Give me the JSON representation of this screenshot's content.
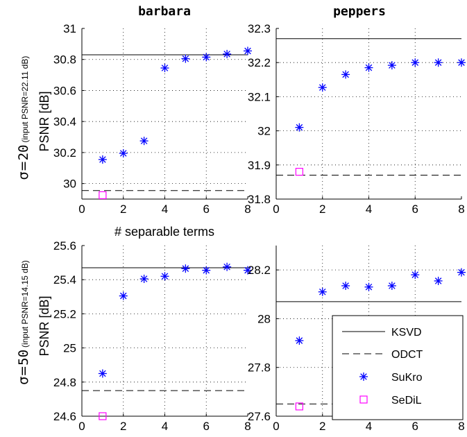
{
  "figure": {
    "row_labels": [
      {
        "sigma_symbol": "σ=",
        "sigma_value": "20",
        "input_note": "(input PSNR=22.11 dB)",
        "metric": "PSNR [dB]"
      },
      {
        "sigma_symbol": "σ=",
        "sigma_value": "50",
        "input_note": "(input PSNR=14.15 dB)",
        "metric": "PSNR [dB]"
      }
    ],
    "legend": [
      {
        "label": "KSVD",
        "style": "solid",
        "color": "#000000"
      },
      {
        "label": "ODCT",
        "style": "dashed",
        "color": "#000000"
      },
      {
        "label": "SuKro",
        "style": "asterisk",
        "color": "#0000ff"
      },
      {
        "label": "SeDiL",
        "style": "square",
        "color": "#ff00ff"
      }
    ],
    "colors": {
      "sukro": "#0000ff",
      "sedil": "#ff00ff",
      "lines": "#000000"
    }
  },
  "chart_data": [
    {
      "type": "scatter",
      "title": "barbara",
      "xlabel": "# separable terms",
      "ylabel": "PSNR [dB]",
      "xlim": [
        0,
        8
      ],
      "ylim": [
        29.9,
        31.0
      ],
      "xticks": [
        0,
        2,
        4,
        6,
        8
      ],
      "yticks": [
        30,
        30.2,
        30.4,
        30.6,
        30.8,
        31
      ],
      "ytick_labels": [
        "30",
        "30.2",
        "30.4",
        "30.6",
        "30.8",
        "31"
      ],
      "grid": true,
      "series": [
        {
          "name": "KSVD",
          "kind": "hline",
          "y": 30.83
        },
        {
          "name": "ODCT",
          "kind": "hline",
          "y": 29.955
        },
        {
          "name": "SuKro",
          "kind": "points",
          "x": [
            1,
            2,
            3,
            4,
            5,
            6,
            7,
            8
          ],
          "y": [
            30.155,
            30.195,
            30.275,
            30.745,
            30.805,
            30.815,
            30.835,
            30.855
          ]
        },
        {
          "name": "SeDiL",
          "kind": "points",
          "x": [
            1
          ],
          "y": [
            29.925
          ]
        }
      ]
    },
    {
      "type": "scatter",
      "title": "peppers",
      "xlabel": "",
      "ylabel": "",
      "xlim": [
        0,
        8
      ],
      "ylim": [
        31.8,
        32.3
      ],
      "xticks": [
        0,
        2,
        4,
        6,
        8
      ],
      "yticks": [
        31.8,
        31.9,
        32,
        32.1,
        32.2,
        32.3
      ],
      "ytick_labels": [
        "31.8",
        "31.9",
        "32",
        "32.1",
        "32.2",
        "32.3"
      ],
      "grid": true,
      "series": [
        {
          "name": "KSVD",
          "kind": "hline",
          "y": 32.27
        },
        {
          "name": "ODCT",
          "kind": "hline",
          "y": 31.87
        },
        {
          "name": "SuKro",
          "kind": "points",
          "x": [
            1,
            2,
            3,
            4,
            5,
            6,
            7,
            8
          ],
          "y": [
            32.01,
            32.127,
            32.165,
            32.185,
            32.192,
            32.2,
            32.2,
            32.2
          ]
        },
        {
          "name": "SeDiL",
          "kind": "points",
          "x": [
            1
          ],
          "y": [
            31.88
          ]
        }
      ]
    },
    {
      "type": "scatter",
      "title": "",
      "xlabel": "",
      "ylabel": "PSNR [dB]",
      "xlim": [
        0,
        8
      ],
      "ylim": [
        24.6,
        25.6
      ],
      "xticks": [
        0,
        2,
        4,
        6,
        8
      ],
      "yticks": [
        24.6,
        24.8,
        25,
        25.2,
        25.4,
        25.6
      ],
      "ytick_labels": [
        "24.6",
        "24.8",
        "25",
        "25.2",
        "25.4",
        "25.6"
      ],
      "grid": true,
      "series": [
        {
          "name": "KSVD",
          "kind": "hline",
          "y": 25.47
        },
        {
          "name": "ODCT",
          "kind": "hline",
          "y": 24.75
        },
        {
          "name": "SuKro",
          "kind": "points",
          "x": [
            1,
            2,
            3,
            4,
            5,
            6,
            7,
            8
          ],
          "y": [
            24.85,
            25.305,
            25.405,
            25.42,
            25.465,
            25.455,
            25.475,
            25.455
          ]
        },
        {
          "name": "SeDiL",
          "kind": "points",
          "x": [
            1
          ],
          "y": [
            24.6
          ]
        }
      ]
    },
    {
      "type": "scatter",
      "title": "",
      "xlabel": "",
      "ylabel": "",
      "xlim": [
        0,
        8
      ],
      "ylim": [
        27.6,
        28.3
      ],
      "xticks": [
        0,
        2,
        4,
        6,
        8
      ],
      "yticks": [
        27.6,
        27.8,
        28,
        28.2
      ],
      "ytick_labels": [
        "27.6",
        "27.8",
        "28",
        "28.2"
      ],
      "grid": true,
      "legend": "bottom-right",
      "series": [
        {
          "name": "KSVD",
          "kind": "hline",
          "y": 28.07
        },
        {
          "name": "ODCT",
          "kind": "hline",
          "y": 27.65
        },
        {
          "name": "SuKro",
          "kind": "points",
          "x": [
            1,
            2,
            3,
            4,
            5,
            6,
            7,
            8
          ],
          "y": [
            27.91,
            28.11,
            28.135,
            28.13,
            28.135,
            28.18,
            28.155,
            28.19
          ]
        },
        {
          "name": "SeDiL",
          "kind": "points",
          "x": [
            1
          ],
          "y": [
            27.64
          ]
        }
      ]
    }
  ]
}
